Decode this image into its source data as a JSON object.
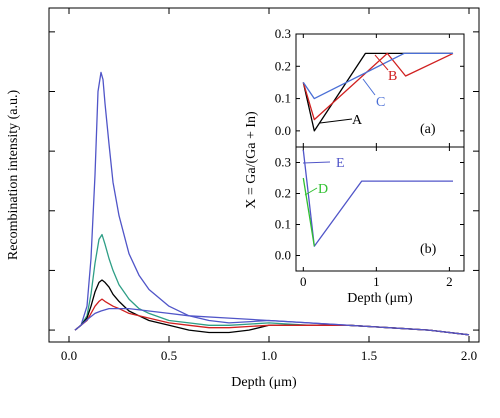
{
  "chart_data": [
    {
      "type": "line",
      "xlabel": "Depth (μm)",
      "ylabel": "Recombination intensity (a.u.)",
      "xlim": [
        -0.1,
        2.05
      ],
      "ylim": [
        -0.05,
        1.35
      ],
      "xticks": [
        "0.0",
        "0.5",
        "1.0",
        "1.5",
        "2.0"
      ],
      "xtick_values": [
        0.0,
        0.5,
        1.0,
        1.5,
        2.0
      ],
      "yticks_unlabeled": [
        0.0,
        0.25,
        0.5,
        0.75,
        1.0,
        1.25
      ],
      "series": [
        {
          "color": "#5055c8",
          "x": [
            0.03,
            0.06,
            0.09,
            0.11,
            0.13,
            0.145,
            0.16,
            0.17,
            0.18,
            0.2,
            0.22,
            0.25,
            0.3,
            0.35,
            0.4,
            0.5,
            0.6,
            0.7,
            0.8,
            1.0,
            1.2,
            1.4,
            1.6,
            1.8,
            2.0
          ],
          "y": [
            0.0,
            0.02,
            0.1,
            0.3,
            0.65,
            1.0,
            1.08,
            1.05,
            0.95,
            0.78,
            0.62,
            0.48,
            0.32,
            0.23,
            0.17,
            0.1,
            0.06,
            0.04,
            0.03,
            0.04,
            0.03,
            0.02,
            0.01,
            0.0,
            -0.02
          ]
        },
        {
          "color": "#2e9e86",
          "x": [
            0.03,
            0.06,
            0.09,
            0.11,
            0.13,
            0.15,
            0.165,
            0.18,
            0.2,
            0.22,
            0.25,
            0.3,
            0.35,
            0.4,
            0.5,
            0.6,
            0.7,
            0.8,
            1.0,
            1.2,
            1.4,
            1.6,
            1.8,
            2.0
          ],
          "y": [
            0.0,
            0.02,
            0.06,
            0.15,
            0.28,
            0.38,
            0.4,
            0.36,
            0.3,
            0.25,
            0.19,
            0.13,
            0.09,
            0.07,
            0.04,
            0.03,
            0.02,
            0.02,
            0.03,
            0.02,
            0.02,
            0.01,
            0.0,
            -0.02
          ]
        },
        {
          "color": "#000000",
          "x": [
            0.03,
            0.06,
            0.09,
            0.11,
            0.13,
            0.15,
            0.165,
            0.18,
            0.2,
            0.22,
            0.25,
            0.3,
            0.35,
            0.4,
            0.5,
            0.6,
            0.7,
            0.8,
            0.9,
            1.0,
            1.2,
            1.4,
            1.6,
            1.8,
            2.0
          ],
          "y": [
            0.0,
            0.02,
            0.05,
            0.1,
            0.16,
            0.2,
            0.21,
            0.2,
            0.18,
            0.15,
            0.12,
            0.08,
            0.06,
            0.04,
            0.02,
            0.0,
            -0.01,
            -0.01,
            0.0,
            0.02,
            0.02,
            0.02,
            0.01,
            0.0,
            -0.02
          ]
        },
        {
          "color": "#d02020",
          "x": [
            0.03,
            0.06,
            0.09,
            0.11,
            0.13,
            0.15,
            0.165,
            0.18,
            0.2,
            0.22,
            0.25,
            0.3,
            0.35,
            0.4,
            0.5,
            0.6,
            0.7,
            0.8,
            1.0,
            1.2,
            1.4,
            1.6,
            1.8,
            2.0
          ],
          "y": [
            0.0,
            0.02,
            0.04,
            0.07,
            0.1,
            0.12,
            0.13,
            0.12,
            0.11,
            0.1,
            0.09,
            0.07,
            0.06,
            0.05,
            0.03,
            0.02,
            0.01,
            0.01,
            0.02,
            0.02,
            0.02,
            0.01,
            0.0,
            -0.02
          ]
        },
        {
          "color": "#5055c8",
          "x": [
            0.03,
            0.06,
            0.1,
            0.13,
            0.16,
            0.2,
            0.25,
            0.3,
            0.4,
            0.5,
            0.6,
            0.8,
            1.0,
            1.2,
            1.4,
            1.6,
            1.8,
            2.0
          ],
          "y": [
            0.0,
            0.02,
            0.05,
            0.07,
            0.08,
            0.09,
            0.09,
            0.09,
            0.08,
            0.07,
            0.06,
            0.05,
            0.04,
            0.03,
            0.02,
            0.01,
            0.0,
            -0.02
          ]
        }
      ]
    },
    {
      "type": "line",
      "panel_label": "(a)",
      "xlim": [
        -0.1,
        2.2
      ],
      "ylim": [
        -0.05,
        0.3
      ],
      "yticks": [
        "0.0",
        "0.1",
        "0.2",
        "0.3"
      ],
      "ytick_values": [
        0.0,
        0.1,
        0.2,
        0.3
      ],
      "series": [
        {
          "name": "A",
          "color": "#000000",
          "x": [
            0.0,
            0.15,
            0.85,
            2.05
          ],
          "y": [
            0.15,
            0.0,
            0.24,
            0.24
          ]
        },
        {
          "name": "B",
          "color": "#d02020",
          "x": [
            0.0,
            0.15,
            1.15,
            1.4,
            2.05
          ],
          "y": [
            0.15,
            0.035,
            0.24,
            0.17,
            0.24
          ]
        },
        {
          "name": "C",
          "color": "#4a6fd6",
          "x": [
            0.0,
            0.15,
            1.38,
            2.05
          ],
          "y": [
            0.15,
            0.1,
            0.24,
            0.24
          ]
        }
      ],
      "labels": [
        "A",
        "B",
        "C"
      ]
    },
    {
      "type": "line",
      "panel_label": "(b)",
      "xlabel": "Depth (μm)",
      "ylabel": "X = Ga/(Ga + In)",
      "xlim": [
        -0.1,
        2.2
      ],
      "ylim": [
        -0.05,
        0.35
      ],
      "xticks": [
        "0",
        "1",
        "2"
      ],
      "xtick_values": [
        0,
        1,
        2
      ],
      "yticks": [
        "0.0",
        "0.1",
        "0.2",
        "0.3"
      ],
      "ytick_values": [
        0.0,
        0.1,
        0.2,
        0.3
      ],
      "series": [
        {
          "name": "E",
          "color": "#5055c8",
          "x": [
            0.0,
            0.15,
            0.8,
            2.05
          ],
          "y": [
            0.34,
            0.03,
            0.24,
            0.24
          ]
        },
        {
          "name": "D",
          "color": "#30c030",
          "x": [
            0.0,
            0.15
          ],
          "y": [
            0.25,
            0.03
          ]
        }
      ],
      "labels": [
        "D",
        "E"
      ]
    }
  ]
}
